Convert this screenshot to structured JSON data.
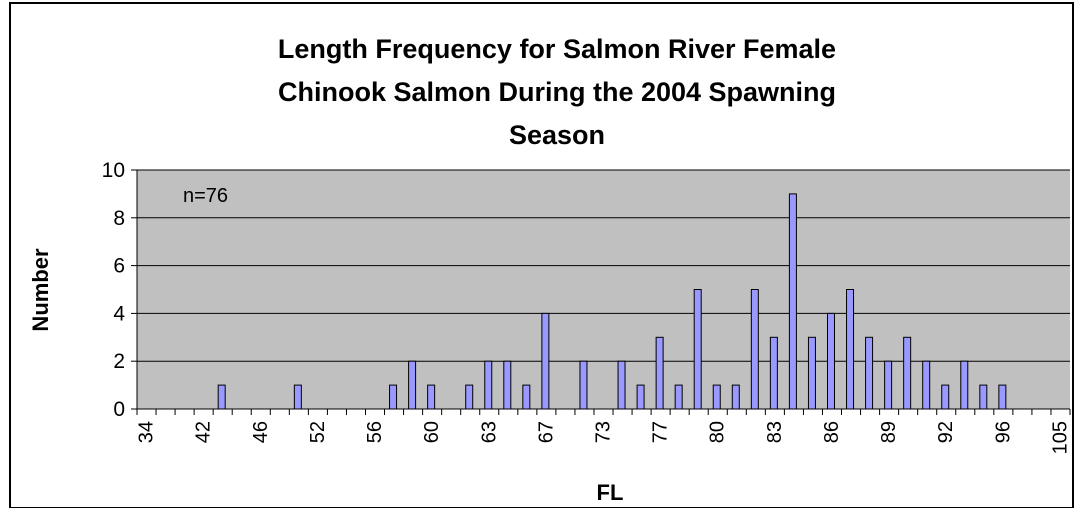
{
  "chart_data": {
    "type": "bar",
    "title": [
      "Length Frequency for Salmon River Female",
      "Chinook Salmon During the 2004 Spawning",
      "Season"
    ],
    "x_label": "FL",
    "y_label": "Number",
    "annotation": "n=76",
    "categories": [
      "34",
      null,
      null,
      "42",
      null,
      null,
      "46",
      null,
      null,
      "52",
      null,
      null,
      "56",
      null,
      null,
      "60",
      null,
      null,
      "63",
      null,
      null,
      "67",
      null,
      null,
      "73",
      null,
      null,
      "77",
      null,
      null,
      "80",
      null,
      null,
      "83",
      null,
      null,
      "86",
      null,
      null,
      "89",
      null,
      null,
      "92",
      null,
      null,
      "96",
      null,
      null,
      "105"
    ],
    "values": [
      0,
      0,
      0,
      0,
      1,
      0,
      0,
      0,
      1,
      0,
      0,
      0,
      0,
      1,
      2,
      1,
      0,
      1,
      2,
      2,
      1,
      4,
      0,
      2,
      0,
      2,
      1,
      3,
      1,
      5,
      1,
      1,
      5,
      3,
      9,
      3,
      4,
      5,
      3,
      2,
      3,
      2,
      1,
      2,
      1,
      1,
      0,
      0,
      0
    ],
    "color": "#9999ff",
    "ylim": [
      0,
      10
    ],
    "yticks": [
      0,
      2,
      4,
      6,
      8,
      10
    ],
    "grid": true,
    "plot_background": "#c0c0c0"
  }
}
